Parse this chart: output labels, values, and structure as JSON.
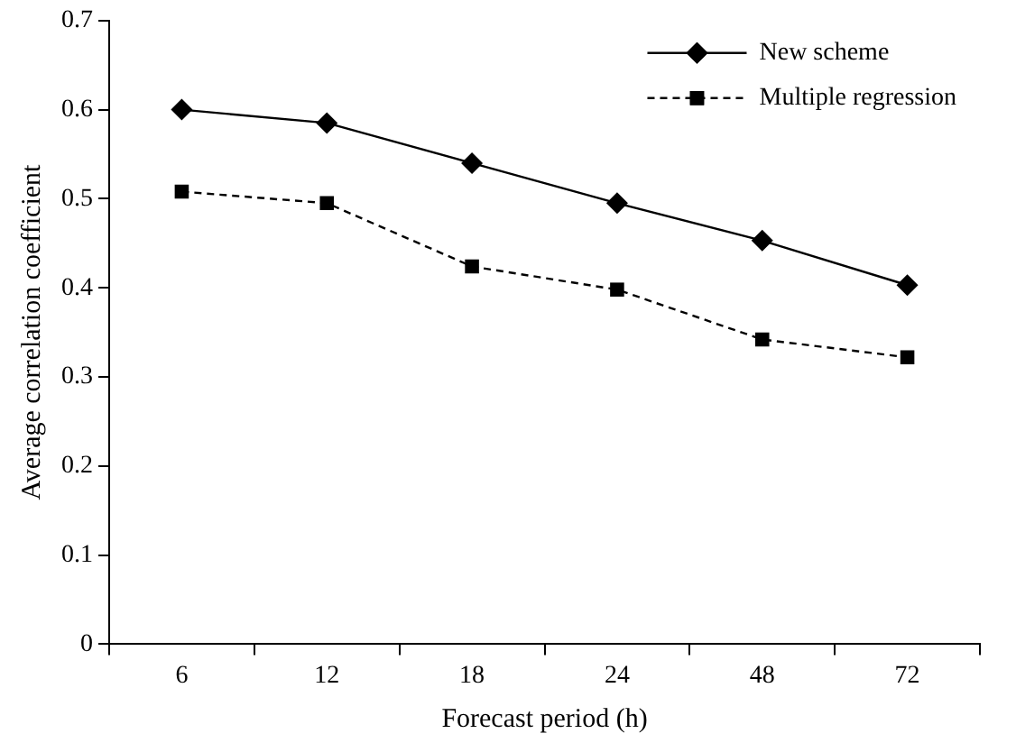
{
  "chart_data": {
    "type": "line",
    "xlabel": "Forecast period (h)",
    "ylabel": "Average correlation coefficient",
    "categories": [
      "6",
      "12",
      "18",
      "24",
      "48",
      "72"
    ],
    "series": [
      {
        "name": "New scheme",
        "color": "#000000",
        "marker": "diamond",
        "line_style": "solid",
        "values": [
          0.6,
          0.585,
          0.54,
          0.495,
          0.453,
          0.403
        ]
      },
      {
        "name": "Multiple regression",
        "color": "#000000",
        "marker": "square",
        "line_style": "dashed",
        "values": [
          0.508,
          0.495,
          0.424,
          0.398,
          0.342,
          0.322
        ]
      }
    ],
    "ylim": [
      0,
      0.7
    ],
    "yticks": [
      0,
      0.1,
      0.2,
      0.3,
      0.4,
      0.5,
      0.6,
      0.7
    ],
    "grid": false,
    "legend": "top right"
  }
}
